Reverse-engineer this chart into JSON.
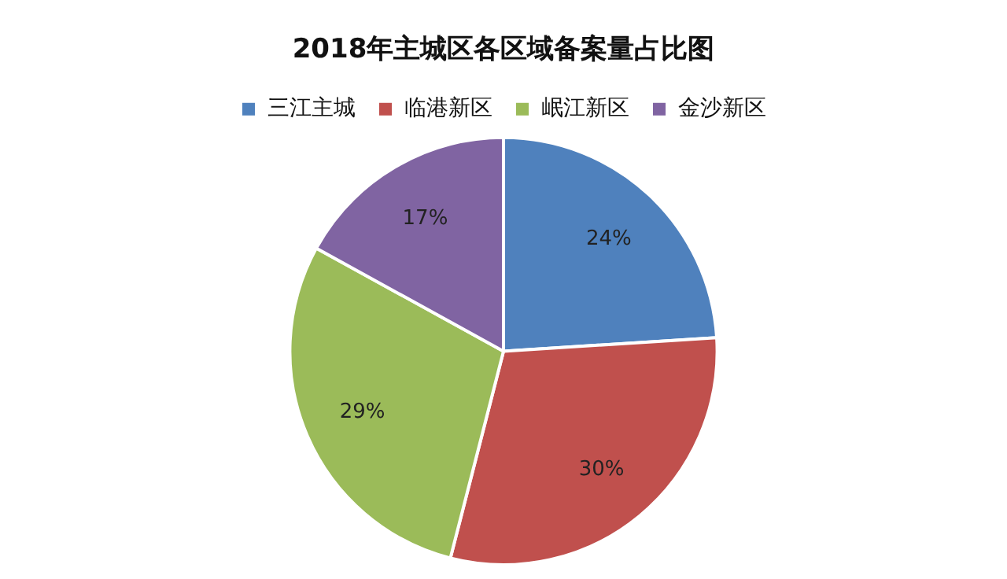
{
  "chart_data": {
    "type": "pie",
    "title": "2018年主城区各区域备案量占比图",
    "categories": [
      "三江主城",
      "临港新区",
      "岷江新区",
      "金沙新区"
    ],
    "values": [
      24,
      30,
      29,
      17
    ],
    "colors": [
      "#4f81bd",
      "#c0504d",
      "#9bbb59",
      "#8064a2"
    ],
    "value_labels": [
      "24%",
      "30%",
      "29%",
      "17%"
    ],
    "legend": "top"
  }
}
